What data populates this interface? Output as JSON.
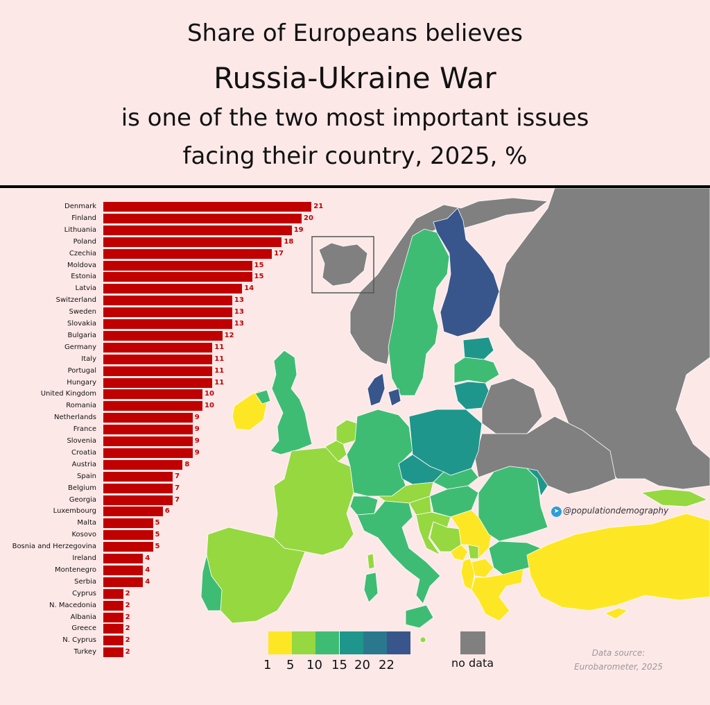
{
  "title": {
    "line1": "Share of Europeans believes",
    "line2": "Russia-Ukraine War",
    "line3": "is one of the two most important issues",
    "line4": "facing their country, 2025, %"
  },
  "legend": {
    "ticks": [
      "1",
      "5",
      "10",
      "15",
      "20",
      "22"
    ],
    "colors": [
      "#fde725",
      "#95d840",
      "#3fbc73",
      "#1f968b",
      "#2a788e",
      "#39568c"
    ],
    "no_data_label": "no data",
    "no_data_color": "#808080"
  },
  "credit": "@populationdemography",
  "source": {
    "line1": "Data source:",
    "line2": "Eurobarometer, 2025"
  },
  "bar_color": "#c00000",
  "chart_data": {
    "type": "bar",
    "orientation": "horizontal",
    "categories": [
      "Denmark",
      "Finland",
      "Lithuania",
      "Poland",
      "Czechia",
      "Moldova",
      "Estonia",
      "Latvia",
      "Switzerland",
      "Sweden",
      "Slovakia",
      "Bulgaria",
      "Germany",
      "Italy",
      "Portugal",
      "Hungary",
      "United Kingdom",
      "Romania",
      "Netherlands",
      "France",
      "Slovenia",
      "Croatia",
      "Austria",
      "Spain",
      "Belgium",
      "Georgia",
      "Luxembourg",
      "Malta",
      "Kosovo",
      "Bosnia and Herzegovina",
      "Ireland",
      "Montenegro",
      "Serbia",
      "Cyprus",
      "N. Macedonia",
      "Albania",
      "Greece",
      "N. Cyprus",
      "Turkey"
    ],
    "values": [
      21,
      20,
      19,
      18,
      17,
      15,
      15,
      14,
      13,
      13,
      13,
      12,
      11,
      11,
      11,
      11,
      10,
      10,
      9,
      9,
      9,
      9,
      8,
      7,
      7,
      7,
      6,
      5,
      5,
      5,
      4,
      4,
      4,
      2,
      2,
      2,
      2,
      2,
      2
    ]
  },
  "map": {
    "regions": [
      {
        "name": "Iceland",
        "color": "#808080"
      },
      {
        "name": "Norway",
        "color": "#808080"
      },
      {
        "name": "Sweden",
        "color": "#3fbc73"
      },
      {
        "name": "Finland",
        "color": "#39568c"
      },
      {
        "name": "Estonia",
        "color": "#1f968b"
      },
      {
        "name": "Latvia",
        "color": "#3fbc73"
      },
      {
        "name": "Lithuania",
        "color": "#1f968b"
      },
      {
        "name": "Denmark",
        "color": "#39568c"
      },
      {
        "name": "Ireland",
        "color": "#fde725"
      },
      {
        "name": "Northern Ireland",
        "color": "#3fbc73"
      },
      {
        "name": "United Kingdom",
        "color": "#3fbc73"
      },
      {
        "name": "Netherlands",
        "color": "#95d840"
      },
      {
        "name": "Belgium",
        "color": "#95d840"
      },
      {
        "name": "France",
        "color": "#95d840"
      },
      {
        "name": "Spain",
        "color": "#95d840"
      },
      {
        "name": "Portugal",
        "color": "#3fbc73"
      },
      {
        "name": "Germany",
        "color": "#3fbc73"
      },
      {
        "name": "Poland",
        "color": "#1f968b"
      },
      {
        "name": "Czechia",
        "color": "#1f968b"
      },
      {
        "name": "Slovakia",
        "color": "#3fbc73"
      },
      {
        "name": "Austria",
        "color": "#95d840"
      },
      {
        "name": "Switzerland",
        "color": "#3fbc73"
      },
      {
        "name": "Hungary",
        "color": "#3fbc73"
      },
      {
        "name": "Slovenia",
        "color": "#95d840"
      },
      {
        "name": "Croatia",
        "color": "#95d840"
      },
      {
        "name": "Bosnia and Herzegovina",
        "color": "#95d840"
      },
      {
        "name": "Serbia",
        "color": "#fde725"
      },
      {
        "name": "Montenegro",
        "color": "#fde725"
      },
      {
        "name": "Kosovo",
        "color": "#95d840"
      },
      {
        "name": "Albania",
        "color": "#fde725"
      },
      {
        "name": "N. Macedonia",
        "color": "#fde725"
      },
      {
        "name": "Greece",
        "color": "#fde725"
      },
      {
        "name": "Bulgaria",
        "color": "#3fbc73"
      },
      {
        "name": "Romania",
        "color": "#3fbc73"
      },
      {
        "name": "Moldova",
        "color": "#1f968b"
      },
      {
        "name": "Italy",
        "color": "#3fbc73"
      },
      {
        "name": "Sardinia",
        "color": "#3fbc73"
      },
      {
        "name": "Corsica",
        "color": "#95d840"
      },
      {
        "name": "Sicily",
        "color": "#3fbc73"
      },
      {
        "name": "Malta",
        "color": "#95d840"
      },
      {
        "name": "Turkey",
        "color": "#fde725"
      },
      {
        "name": "Cyprus",
        "color": "#fde725"
      },
      {
        "name": "Georgia",
        "color": "#95d840"
      },
      {
        "name": "Russia",
        "color": "#808080"
      },
      {
        "name": "Belarus",
        "color": "#808080"
      },
      {
        "name": "Ukraine",
        "color": "#808080"
      }
    ]
  }
}
